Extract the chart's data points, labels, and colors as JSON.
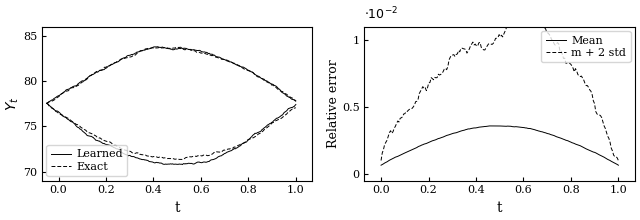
{
  "left": {
    "ylabel": "$Y_t$",
    "xlabel": "t",
    "ylim": [
      69,
      86
    ],
    "xlim": [
      -0.07,
      1.07
    ],
    "yticks": [
      70,
      75,
      80,
      85
    ],
    "xticks": [
      0,
      0.2,
      0.4,
      0.6,
      0.8,
      1.0
    ],
    "legend_labels": [
      "Learned",
      "Exact"
    ]
  },
  "right": {
    "ylabel": "Relative error",
    "xlabel": "t",
    "ylim": [
      -0.0005,
      0.011
    ],
    "xlim": [
      -0.07,
      1.07
    ],
    "yticks": [
      0,
      0.005,
      0.01
    ],
    "ytick_labels": [
      "0",
      "0.5",
      "1"
    ],
    "xticks": [
      0,
      0.2,
      0.4,
      0.6,
      0.8,
      1.0
    ],
    "scale_label": "$\\cdot10^{-2}$",
    "legend_labels": [
      "Mean",
      "m + 2 std"
    ]
  }
}
